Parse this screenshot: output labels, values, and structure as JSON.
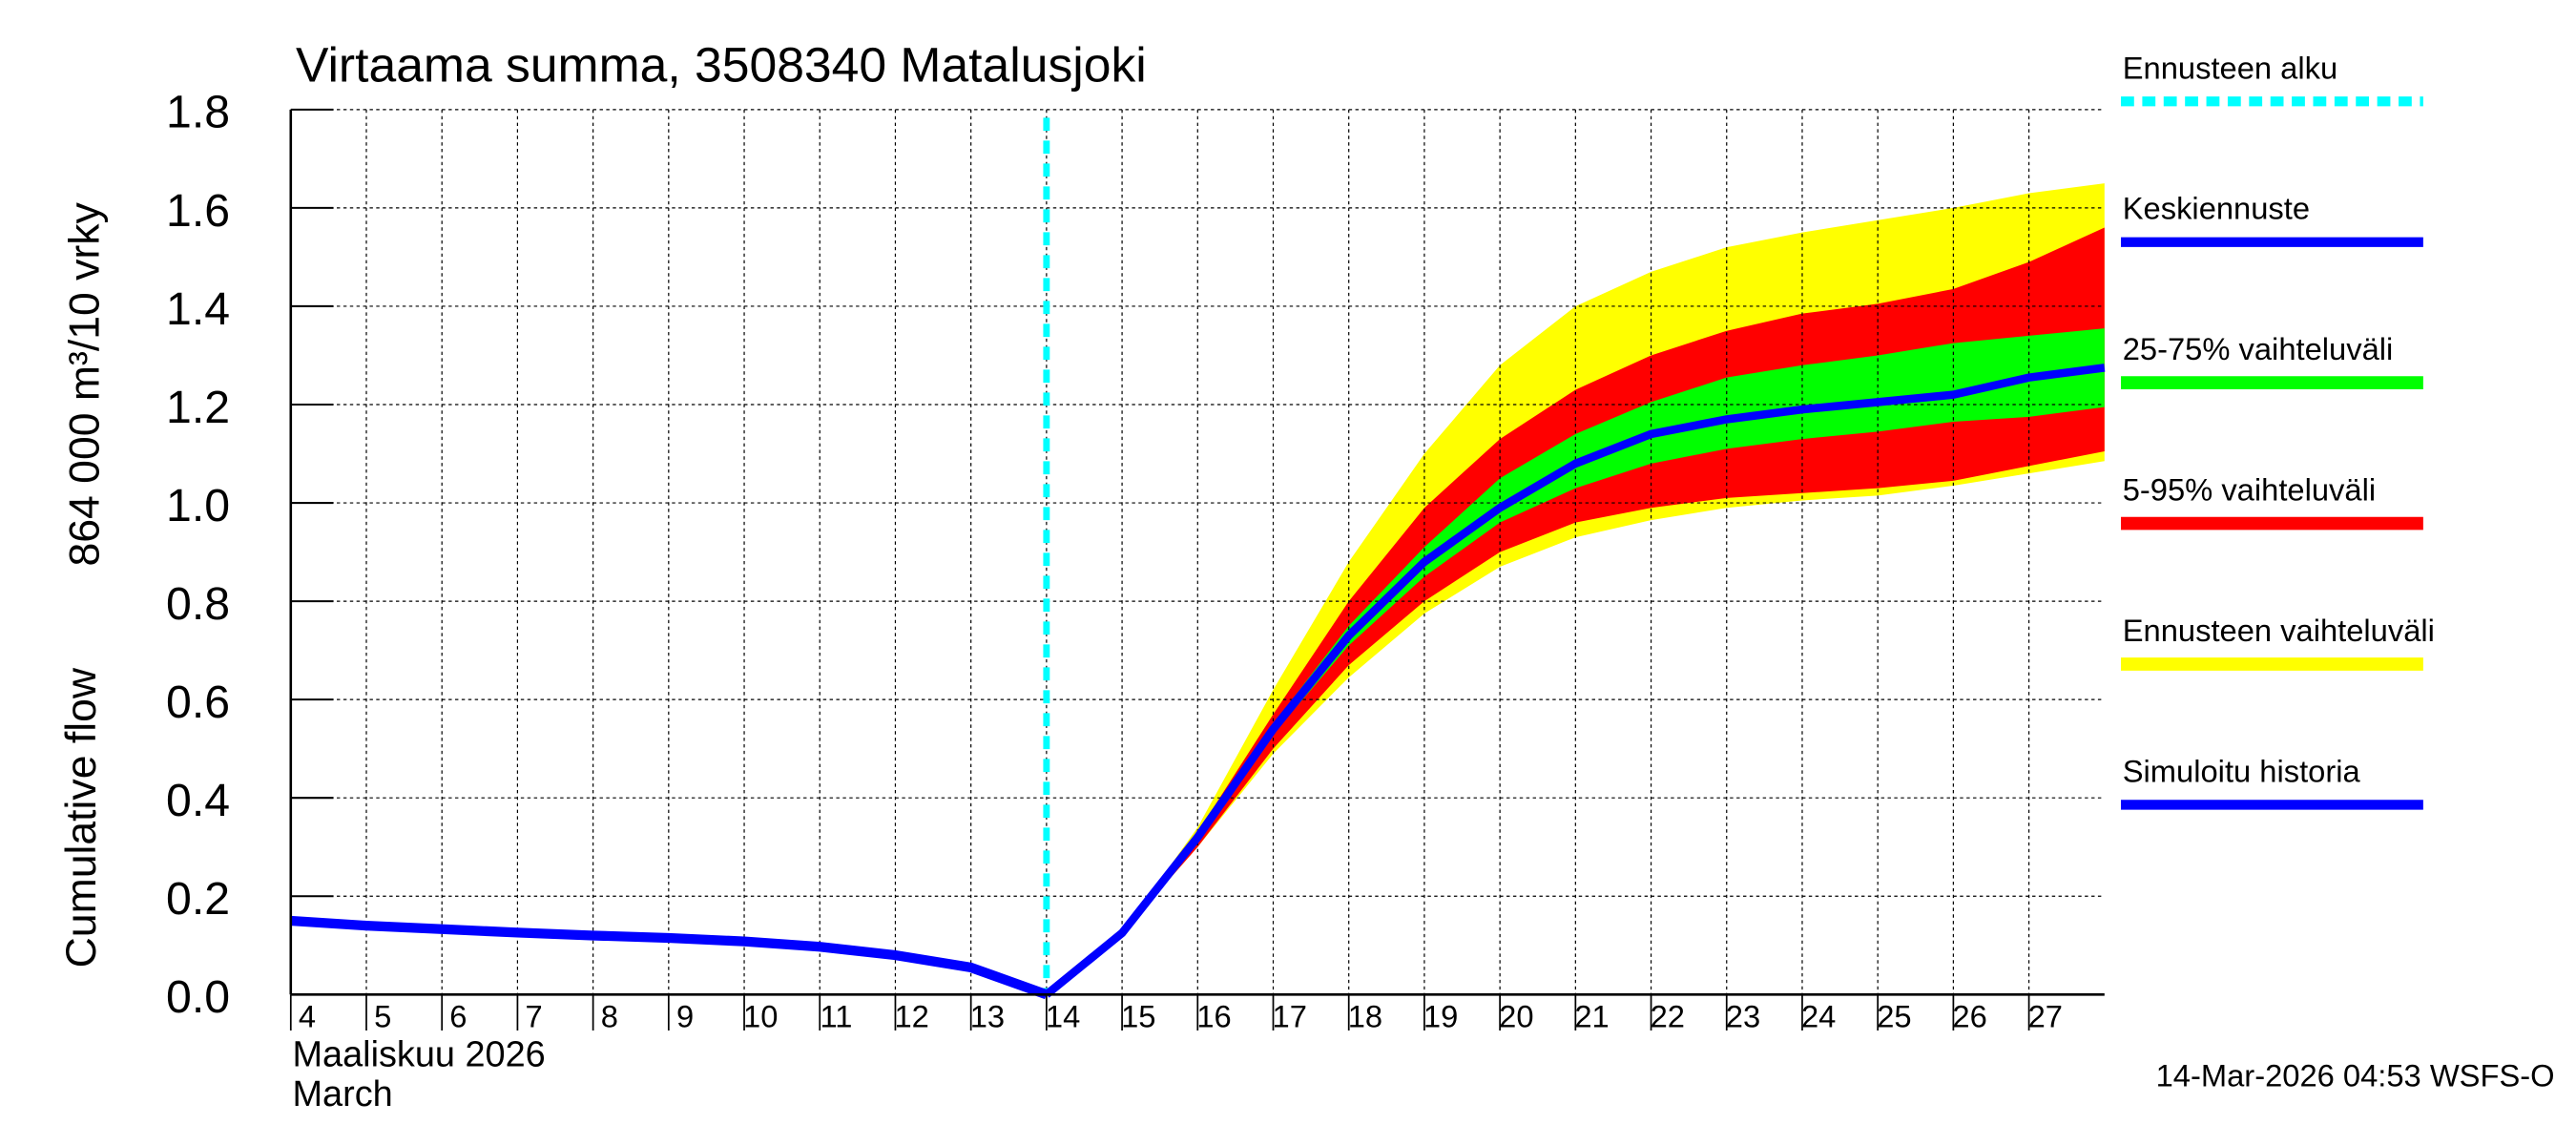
{
  "chart_data": {
    "type": "area",
    "title": "Virtaama summa, 3508340 Matalusjoki",
    "ylabel_fi": "864 000 m³/10 vrky",
    "ylabel_en": "Cumulative flow",
    "xlabel_fi": "Maaliskuu 2026",
    "xlabel_en": "March",
    "footer": "14-Mar-2026 04:53 WSFS-O",
    "ylim": [
      0,
      1.8
    ],
    "xlim": [
      4,
      28
    ],
    "yticks": [
      "0.0",
      "0.2",
      "0.4",
      "0.6",
      "0.8",
      "1.0",
      "1.2",
      "1.4",
      "1.6",
      "1.8"
    ],
    "xticks": [
      "4",
      "5",
      "6",
      "7",
      "8",
      "9",
      "10",
      "11",
      "12",
      "13",
      "14",
      "15",
      "16",
      "17",
      "18",
      "19",
      "20",
      "21",
      "22",
      "23",
      "24",
      "25",
      "26",
      "27"
    ],
    "grid": true,
    "legend_placement": "right",
    "forecast_start": 14,
    "legend": [
      {
        "label": "Ennusteen alku",
        "color": "#00ffff",
        "style": "dashed"
      },
      {
        "label": "Keskiennuste",
        "color": "#0000ff",
        "style": "solid"
      },
      {
        "label": "25-75% vaihteluväli",
        "color": "#00ff00",
        "style": "band"
      },
      {
        "label": "5-95% vaihteluväli",
        "color": "#ff0000",
        "style": "band"
      },
      {
        "label": "Ennusteen vaihteluväli",
        "color": "#ffff00",
        "style": "band"
      },
      {
        "label": "Simuloitu historia",
        "color": "#0000ff",
        "style": "solid"
      }
    ],
    "history": {
      "x": [
        4,
        5,
        6,
        7,
        8,
        9,
        10,
        11,
        12,
        13,
        14
      ],
      "y": [
        0.15,
        0.14,
        0.133,
        0.126,
        0.12,
        0.115,
        0.108,
        0.097,
        0.08,
        0.055,
        0.0
      ]
    },
    "forecast_x": [
      14,
      15,
      16,
      17,
      18,
      19,
      20,
      21,
      22,
      23,
      24,
      25,
      26,
      27,
      28
    ],
    "median": [
      0.0,
      0.125,
      0.32,
      0.54,
      0.73,
      0.88,
      0.99,
      1.08,
      1.14,
      1.17,
      1.19,
      1.205,
      1.22,
      1.255,
      1.275
    ],
    "range_max": [
      0.0,
      0.125,
      0.34,
      0.62,
      0.88,
      1.1,
      1.28,
      1.4,
      1.47,
      1.52,
      1.55,
      1.575,
      1.6,
      1.63,
      1.65
    ],
    "p95": [
      0.0,
      0.125,
      0.33,
      0.57,
      0.8,
      0.99,
      1.13,
      1.23,
      1.3,
      1.35,
      1.385,
      1.405,
      1.435,
      1.49,
      1.56
    ],
    "p75": [
      0.0,
      0.125,
      0.32,
      0.55,
      0.75,
      0.91,
      1.05,
      1.14,
      1.205,
      1.255,
      1.28,
      1.3,
      1.325,
      1.34,
      1.355
    ],
    "p25": [
      0.0,
      0.125,
      0.31,
      0.53,
      0.71,
      0.85,
      0.96,
      1.03,
      1.08,
      1.11,
      1.13,
      1.145,
      1.165,
      1.175,
      1.195
    ],
    "p5": [
      0.0,
      0.125,
      0.3,
      0.5,
      0.67,
      0.8,
      0.9,
      0.96,
      0.99,
      1.01,
      1.02,
      1.03,
      1.045,
      1.075,
      1.105
    ],
    "range_min": [
      0.0,
      0.125,
      0.3,
      0.49,
      0.645,
      0.775,
      0.87,
      0.93,
      0.965,
      0.99,
      1.005,
      1.015,
      1.035,
      1.06,
      1.085
    ]
  }
}
